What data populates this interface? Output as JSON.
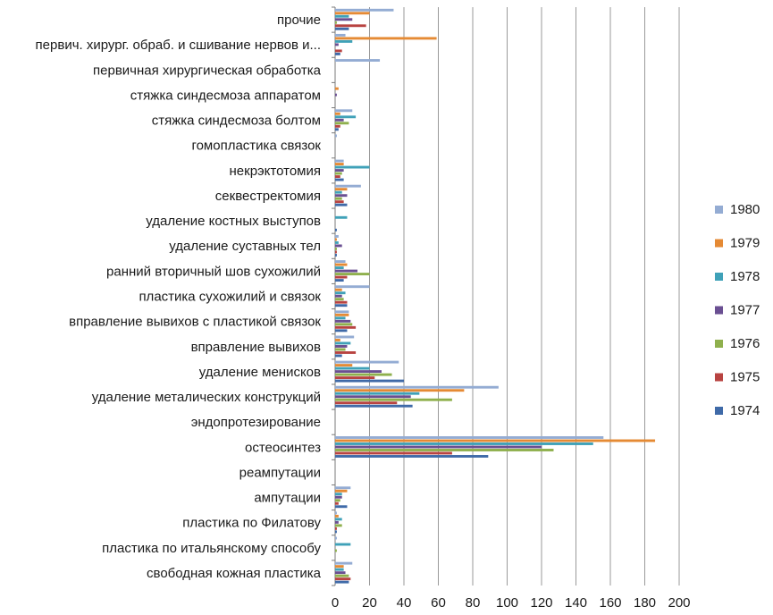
{
  "chart_data": {
    "type": "bar",
    "orientation": "horizontal",
    "title": "",
    "xlabel": "",
    "ylabel": "",
    "xlim": [
      0,
      200
    ],
    "x_ticks": [
      "0",
      "20",
      "40",
      "60",
      "80",
      "100",
      "120",
      "140",
      "160",
      "180",
      "200"
    ],
    "grid": "vertical",
    "legend_position": "right",
    "categories": [
      "свободная кожная пластика",
      "пластика по итальянскому способу",
      "пластика по Филатову",
      "ампутации",
      "реампутации",
      "остеосинтез",
      "эндопротезирование",
      "удаление металических конструкций",
      "удаление менисков",
      "вправление вывихов",
      "вправление вывихов с пластикой связок",
      "пластика сухожилий и связок",
      "ранний вторичный шов сухожилий",
      "удаление суставных тел",
      "удаление костных выступов",
      "секвестректомия",
      "некрэктотомия",
      "гомопластика связок",
      "стяжка синдесмоза болтом",
      "стяжка синдесмоза аппаратом",
      "первичная хирургическая обработка",
      "первич. хирург. обраб. и сшивание нервов и...",
      "прочие"
    ],
    "series": [
      {
        "name": "1974",
        "color": "#3f6aa8",
        "values": [
          8,
          0,
          1,
          7,
          0,
          89,
          0,
          45,
          40,
          4,
          7,
          7,
          5,
          1,
          1,
          7,
          5,
          0,
          2,
          0,
          0,
          3,
          8
        ]
      },
      {
        "name": "1975",
        "color": "#b84341",
        "values": [
          9,
          0,
          1,
          2,
          0,
          68,
          0,
          36,
          23,
          12,
          12,
          7,
          7,
          1,
          0,
          5,
          3,
          0,
          3,
          0,
          0,
          4,
          18
        ]
      },
      {
        "name": "1976",
        "color": "#8fb04d",
        "values": [
          8,
          1,
          4,
          3,
          0,
          127,
          0,
          68,
          33,
          6,
          10,
          5,
          20,
          1,
          0,
          4,
          4,
          0,
          8,
          0,
          0,
          0,
          1
        ]
      },
      {
        "name": "1977",
        "color": "#6a4f92",
        "values": [
          6,
          0,
          2,
          4,
          0,
          120,
          0,
          44,
          27,
          7,
          9,
          4,
          13,
          4,
          0,
          7,
          5,
          0,
          5,
          1,
          0,
          2,
          10
        ]
      },
      {
        "name": "1978",
        "color": "#3fa1b8",
        "values": [
          5,
          9,
          4,
          4,
          0,
          150,
          0,
          49,
          20,
          9,
          6,
          6,
          5,
          2,
          7,
          4,
          20,
          0,
          12,
          0,
          0,
          10,
          8
        ]
      },
      {
        "name": "1979",
        "color": "#e58a34",
        "values": [
          5,
          0,
          2,
          7,
          0,
          186,
          0,
          75,
          10,
          3,
          8,
          4,
          7,
          1,
          0,
          7,
          5,
          0,
          3,
          2,
          0,
          59,
          20
        ]
      },
      {
        "name": "1980",
        "color": "#94acd3",
        "values": [
          10,
          1,
          1,
          9,
          0,
          156,
          0,
          95,
          37,
          11,
          8,
          20,
          6,
          2,
          0,
          15,
          5,
          1,
          10,
          0,
          26,
          6,
          34
        ]
      }
    ]
  }
}
